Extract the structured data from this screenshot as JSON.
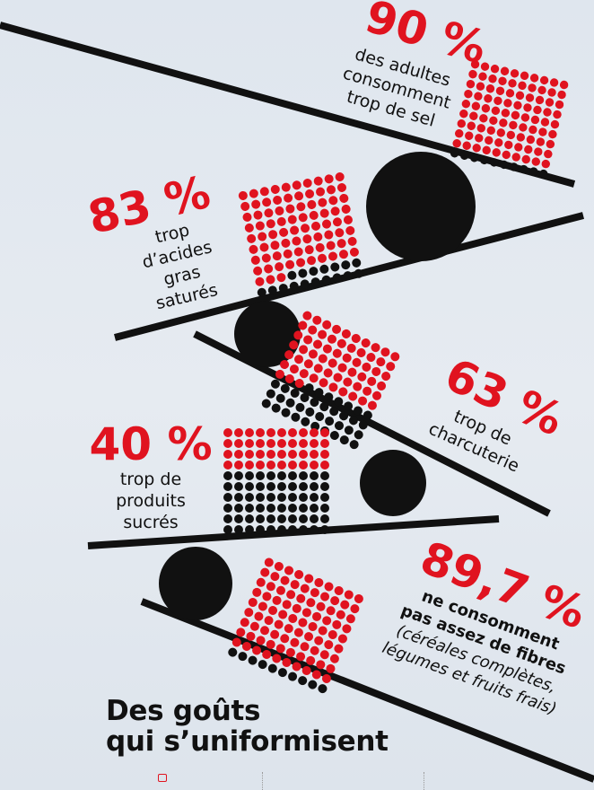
{
  "title": {
    "line1": "Des goûts",
    "line2": "qui s’uniformisent"
  },
  "colors": {
    "accent": "#e0131f",
    "ink": "#111111",
    "background": "#e2e8ef"
  },
  "chart_data": {
    "type": "dot-grid infographic",
    "title": "Des goûts qui s’uniformisent",
    "unit": "% of adults",
    "items": [
      {
        "pct_label": "90 %",
        "value": 90,
        "label_lines": [
          "des adultes",
          "consomment",
          "trop de sel"
        ]
      },
      {
        "pct_label": "83 %",
        "value": 83,
        "label_lines": [
          "trop",
          "d’acides",
          "gras",
          "saturés"
        ]
      },
      {
        "pct_label": "63 %",
        "value": 63,
        "label_lines": [
          "trop de",
          "charcuterie"
        ]
      },
      {
        "pct_label": "40 %",
        "value": 40,
        "label_lines": [
          "trop de",
          "produits",
          "sucrés"
        ]
      },
      {
        "pct_label": "89,7 %",
        "value": 89.7,
        "label_lines": [
          "ne consomment",
          "pas assez de fibres",
          "(céréales complètes,",
          "légumes et fruits frais)"
        ]
      }
    ]
  }
}
